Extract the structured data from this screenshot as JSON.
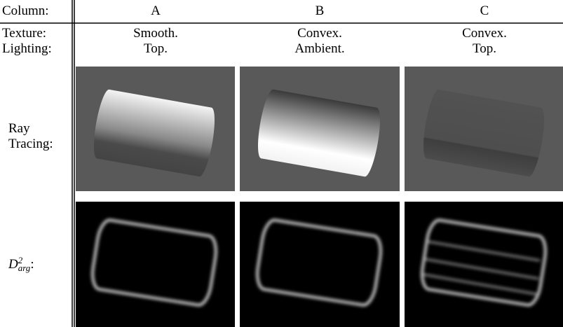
{
  "header": {
    "label": "Column:",
    "columns": [
      "A",
      "B",
      "C"
    ]
  },
  "rows": [
    {
      "label": "Texture:",
      "values": [
        "Smooth.",
        "Convex.",
        "Convex."
      ]
    },
    {
      "label": "Lighting:",
      "values": [
        "Top.",
        "Ambient.",
        "Top."
      ]
    }
  ],
  "image_rows": [
    {
      "label": "Ray Tracing:"
    },
    {
      "label": {
        "base": "D",
        "sup": "2",
        "sub": "arg",
        "suffix": ":"
      }
    }
  ]
}
